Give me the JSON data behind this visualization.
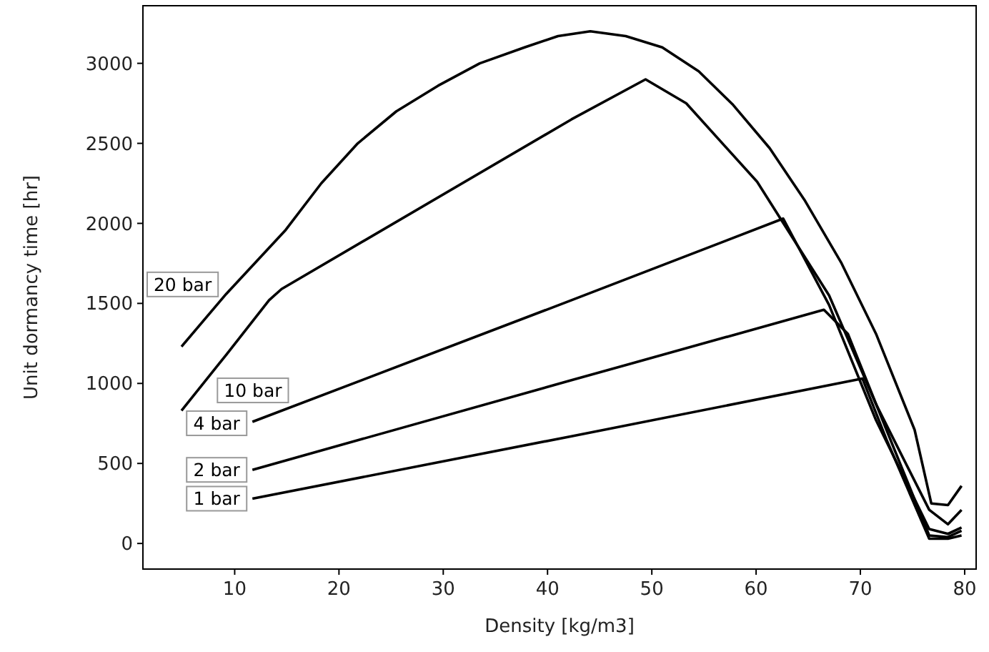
{
  "chart_data": {
    "type": "line",
    "xlabel": "Density [kg/m3]",
    "ylabel": "Unit dormancy time [hr]",
    "xlim": [
      1.2,
      81.1
    ],
    "ylim": [
      -160,
      3360
    ],
    "xticks": [
      10,
      20,
      30,
      40,
      50,
      60,
      70,
      80
    ],
    "yticks": [
      0,
      500,
      1000,
      1500,
      2000,
      2500,
      3000
    ],
    "grid": false,
    "marker": "none",
    "line_style": "solid",
    "series": [
      {
        "name": "20 bar",
        "color": "#000000",
        "x": [
          4.9,
          9.2,
          14.9,
          18.3,
          21.8,
          25.5,
          29.5,
          33.5,
          37.8,
          41,
          44.1,
          47.5,
          51,
          54.5,
          57.8,
          61.3,
          64.7,
          68.2,
          71.5,
          75.2,
          76.8,
          78.4,
          79.7
        ],
        "values": [
          1230,
          1560,
          1960,
          2250,
          2500,
          2700,
          2860,
          3000,
          3100,
          3170,
          3200,
          3170,
          3100,
          2950,
          2740,
          2470,
          2140,
          1750,
          1310,
          710,
          250,
          240,
          360
        ]
      },
      {
        "name": "10 bar",
        "color": "#000000",
        "x": [
          4.9,
          9.2,
          13.3,
          14.5,
          42.3,
          49.4,
          53.3,
          60.1,
          67,
          71.5,
          76.6,
          78.4,
          79.7
        ],
        "values": [
          830,
          1180,
          1520,
          1590,
          2650,
          2900,
          2750,
          2260,
          1550,
          870,
          210,
          120,
          210
        ]
      },
      {
        "name": "4 bar",
        "color": "#000000",
        "x": [
          11.7,
          42.3,
          62.6,
          67,
          71.5,
          76.6,
          78.4,
          79.7
        ],
        "values": [
          760,
          1520,
          2030,
          1490,
          770,
          90,
          60,
          100
        ]
      },
      {
        "name": "2 bar",
        "color": "#000000",
        "x": [
          11.7,
          42.3,
          66.5,
          68.8,
          72.5,
          76.6,
          78.4,
          79.7
        ],
        "values": [
          460,
          1020,
          1460,
          1310,
          710,
          50,
          40,
          80
        ]
      },
      {
        "name": "1 bar",
        "color": "#000000",
        "x": [
          11.7,
          42.3,
          70.2,
          72.5,
          76.6,
          78.4,
          79.7
        ],
        "values": [
          280,
          670,
          1030,
          650,
          30,
          30,
          50
        ]
      }
    ]
  }
}
